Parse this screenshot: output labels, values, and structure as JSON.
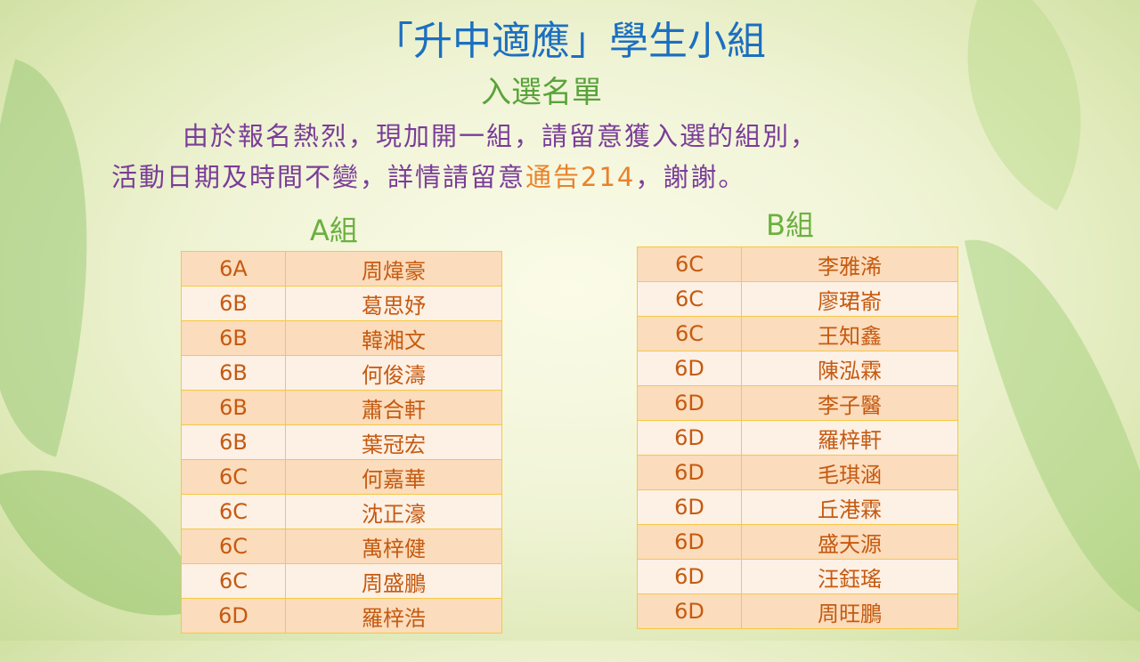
{
  "title": "「升中適應」學生小組",
  "subtitle": "入選名單",
  "notice": {
    "line1": "由於報名熱烈，現加開一組，請留意獲入選的組別，",
    "line2_pre": "活動日期及時間不變，詳情請留意",
    "line2_highlight": "通告214",
    "line2_post": "，謝謝。"
  },
  "colors": {
    "title": "#1c6fc0",
    "subtitle": "#5aa33c",
    "notice": "#7a3d98",
    "highlight": "#e9822a",
    "table_text": "#c55a11",
    "table_border": "#f5c842"
  },
  "groupA": {
    "label": "A組",
    "rows": [
      {
        "class": "6A",
        "name": "周煒豪"
      },
      {
        "class": "6B",
        "name": "葛思妤"
      },
      {
        "class": "6B",
        "name": "韓湘文"
      },
      {
        "class": "6B",
        "name": "何俊濤"
      },
      {
        "class": "6B",
        "name": "蕭合軒"
      },
      {
        "class": "6B",
        "name": "葉冠宏"
      },
      {
        "class": "6C",
        "name": "何嘉華"
      },
      {
        "class": "6C",
        "name": "沈正濠"
      },
      {
        "class": "6C",
        "name": "萬梓健"
      },
      {
        "class": "6C",
        "name": "周盛鵬"
      },
      {
        "class": "6D",
        "name": "羅梓浩"
      }
    ]
  },
  "groupB": {
    "label": "B組",
    "rows": [
      {
        "class": "6C",
        "name": "李雅浠"
      },
      {
        "class": "6C",
        "name": "廖珺嵛"
      },
      {
        "class": "6C",
        "name": "王知鑫"
      },
      {
        "class": "6D",
        "name": "陳泓霖"
      },
      {
        "class": "6D",
        "name": "李子醫"
      },
      {
        "class": "6D",
        "name": "羅梓軒"
      },
      {
        "class": "6D",
        "name": "毛琪涵"
      },
      {
        "class": "6D",
        "name": "丘港霖"
      },
      {
        "class": "6D",
        "name": "盛天源"
      },
      {
        "class": "6D",
        "name": "汪鈺瑤"
      },
      {
        "class": "6D",
        "name": "周旺鵬"
      }
    ]
  }
}
